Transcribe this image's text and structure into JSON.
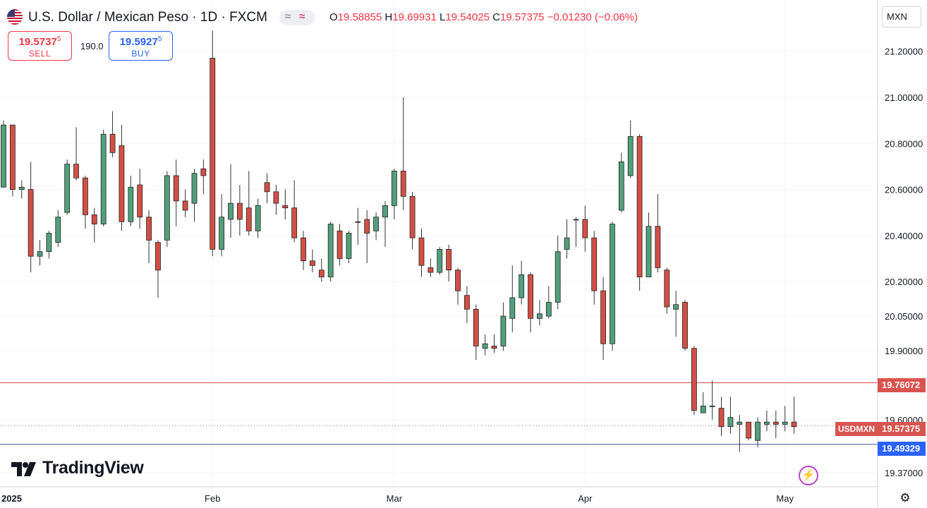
{
  "header": {
    "symbol_title": "U.S. Dollar / Mexican Peso · 1D · FXCM",
    "ohlc": {
      "o_label": "O",
      "o": "19.58855",
      "h_label": "H",
      "h": "19.69931",
      "l_label": "L",
      "l": "19.54025",
      "c_label": "C",
      "c": "19.57375",
      "change": "−0.01230 (−0.06%)"
    }
  },
  "trade": {
    "sell_price": "19.5737",
    "sell_price_sup": "5",
    "sell_label": "SELL",
    "spread": "190.0",
    "buy_price": "19.5927",
    "buy_price_sup": "5",
    "buy_label": "BUY"
  },
  "currency_selector": "MXN",
  "price_tags": {
    "symbol_tag": "USDMXN",
    "current_price": "19.57375",
    "upper_line": "19.76072",
    "lower_line": "19.49329"
  },
  "branding": {
    "logo_text": "TradingView"
  },
  "colors": {
    "up": "#529f7c",
    "down": "#d24f45",
    "upper_line": "#d84a4a",
    "lower_line": "#3d5a9e",
    "tag_red": "#d9534f",
    "tag_blue": "#2962ff"
  },
  "icons": [
    "us-flag-icon",
    "wave-indicator-icon",
    "lightning-icon",
    "gear-icon"
  ],
  "chart_data": {
    "type": "candlestick",
    "title": "U.S. Dollar / Mexican Peso · 1D · FXCM",
    "x_tick_labels": [
      {
        "label": "2025",
        "i": 1
      },
      {
        "label": "Feb",
        "i": 23
      },
      {
        "label": "Mar",
        "i": 43
      },
      {
        "label": "Apr",
        "i": 64
      },
      {
        "label": "May",
        "i": 86
      }
    ],
    "y_tick_labels": [
      "21.20000",
      "21.00000",
      "20.80000",
      "20.60000",
      "20.40000",
      "20.20000",
      "20.05000",
      "19.90000",
      "19.60000",
      "19.37000"
    ],
    "y_tick_values": [
      21.2,
      21.0,
      20.8,
      20.6,
      20.4,
      20.2,
      20.05,
      19.9,
      19.6,
      19.37
    ],
    "ylim": [
      19.34,
      21.38
    ],
    "horizontal_lines": [
      {
        "value": 19.76072,
        "label": "19.76072",
        "style": "solid-red"
      },
      {
        "value": 19.49329,
        "label": "19.49329",
        "style": "solid-blue"
      },
      {
        "value": 19.57375,
        "label": "19.57375",
        "style": "dotted-gray"
      }
    ],
    "candles": [
      [
        20.61,
        20.88,
        20.86,
        20.9
      ],
      [
        20.88,
        20.6,
        20.86,
        20.57
      ],
      [
        20.6,
        20.61,
        20.64,
        20.56
      ],
      [
        20.6,
        20.31,
        20.72,
        20.24
      ],
      [
        20.31,
        20.33,
        20.38,
        20.27
      ],
      [
        20.33,
        20.41,
        20.42,
        20.3
      ],
      [
        20.37,
        20.48,
        20.51,
        20.35
      ],
      [
        20.5,
        20.71,
        20.73,
        20.49
      ],
      [
        20.71,
        20.65,
        20.87,
        20.64
      ],
      [
        20.65,
        20.49,
        20.66,
        20.43
      ],
      [
        20.49,
        20.45,
        20.52,
        20.37
      ],
      [
        20.45,
        20.84,
        20.86,
        20.44
      ],
      [
        20.84,
        20.76,
        20.94,
        20.74
      ],
      [
        20.79,
        20.46,
        20.88,
        20.42
      ],
      [
        20.46,
        20.61,
        20.66,
        20.44
      ],
      [
        20.62,
        20.48,
        20.69,
        20.43
      ],
      [
        20.48,
        20.38,
        20.51,
        20.28
      ],
      [
        20.37,
        20.25,
        20.38,
        20.13
      ],
      [
        20.38,
        20.66,
        20.68,
        20.35
      ],
      [
        20.66,
        20.55,
        20.73,
        20.44
      ],
      [
        20.55,
        20.51,
        20.6,
        20.48
      ],
      [
        20.54,
        20.67,
        20.69,
        20.46
      ],
      [
        20.69,
        20.66,
        20.73,
        20.58
      ],
      [
        21.17,
        20.34,
        21.29,
        20.31
      ],
      [
        20.34,
        20.48,
        20.58,
        20.31
      ],
      [
        20.47,
        20.54,
        20.71,
        20.39
      ],
      [
        20.54,
        20.47,
        20.62,
        20.4
      ],
      [
        20.52,
        20.42,
        20.68,
        20.4
      ],
      [
        20.42,
        20.53,
        20.56,
        20.39
      ],
      [
        20.63,
        20.59,
        20.67,
        20.54
      ],
      [
        20.59,
        20.54,
        20.62,
        20.49
      ],
      [
        20.53,
        20.52,
        20.6,
        20.47
      ],
      [
        20.52,
        20.39,
        20.64,
        20.37
      ],
      [
        20.39,
        20.29,
        20.42,
        20.25
      ],
      [
        20.29,
        20.27,
        20.34,
        20.24
      ],
      [
        20.25,
        20.22,
        20.3,
        20.2
      ],
      [
        20.22,
        20.45,
        20.46,
        20.2
      ],
      [
        20.42,
        20.3,
        20.45,
        20.27
      ],
      [
        20.3,
        20.41,
        20.42,
        20.28
      ],
      [
        20.46,
        20.46,
        20.52,
        20.36
      ],
      [
        20.47,
        20.41,
        20.51,
        20.28
      ],
      [
        20.42,
        20.48,
        20.5,
        20.38
      ],
      [
        20.48,
        20.53,
        20.55,
        20.35
      ],
      [
        20.53,
        20.68,
        20.69,
        20.47
      ],
      [
        20.68,
        20.57,
        21.0,
        20.51
      ],
      [
        20.57,
        20.39,
        20.59,
        20.34
      ],
      [
        20.39,
        20.27,
        20.43,
        20.22
      ],
      [
        20.26,
        20.24,
        20.3,
        20.22
      ],
      [
        20.24,
        20.34,
        20.35,
        20.23
      ],
      [
        20.34,
        20.25,
        20.36,
        20.2
      ],
      [
        20.25,
        20.16,
        20.26,
        20.1
      ],
      [
        20.14,
        20.08,
        20.18,
        20.02
      ],
      [
        20.08,
        19.92,
        20.1,
        19.86
      ],
      [
        19.91,
        19.93,
        19.97,
        19.88
      ],
      [
        19.92,
        19.91,
        19.97,
        19.89
      ],
      [
        19.92,
        20.05,
        20.11,
        19.9
      ],
      [
        20.04,
        20.13,
        20.27,
        19.98
      ],
      [
        20.13,
        20.23,
        20.29,
        20.1
      ],
      [
        20.23,
        20.04,
        20.24,
        19.98
      ],
      [
        20.04,
        20.06,
        20.12,
        20.01
      ],
      [
        20.05,
        20.11,
        20.18,
        20.04
      ],
      [
        20.11,
        20.33,
        20.4,
        20.08
      ],
      [
        20.34,
        20.39,
        20.47,
        20.3
      ],
      [
        20.47,
        20.47,
        20.48,
        20.35
      ],
      [
        20.47,
        20.39,
        20.53,
        20.33
      ],
      [
        20.39,
        20.16,
        20.42,
        20.1
      ],
      [
        20.16,
        19.93,
        20.22,
        19.86
      ],
      [
        19.93,
        20.45,
        20.46,
        19.9
      ],
      [
        20.51,
        20.72,
        20.76,
        20.5
      ],
      [
        20.66,
        20.83,
        20.9,
        20.65
      ],
      [
        20.83,
        20.22,
        20.84,
        20.16
      ],
      [
        20.22,
        20.44,
        20.5,
        20.22
      ],
      [
        20.44,
        20.26,
        20.58,
        20.24
      ],
      [
        20.25,
        20.09,
        20.26,
        20.06
      ],
      [
        20.08,
        20.1,
        20.16,
        19.96
      ],
      [
        20.11,
        19.91,
        20.12,
        19.9
      ],
      [
        19.91,
        19.64,
        19.92,
        19.62
      ],
      [
        19.63,
        19.66,
        19.72,
        19.63
      ],
      [
        19.66,
        19.66,
        19.77,
        19.6
      ],
      [
        19.65,
        19.57,
        19.7,
        19.53
      ],
      [
        19.57,
        19.61,
        19.7,
        19.54
      ],
      [
        19.58,
        19.59,
        19.62,
        19.46
      ],
      [
        19.59,
        19.52,
        19.59,
        19.51
      ],
      [
        19.51,
        19.59,
        19.61,
        19.48
      ],
      [
        19.58,
        19.59,
        19.64,
        19.55
      ],
      [
        19.59,
        19.58,
        19.64,
        19.52
      ],
      [
        19.58,
        19.59,
        19.66,
        19.55
      ],
      [
        19.59,
        19.57,
        19.7,
        19.54
      ]
    ]
  }
}
